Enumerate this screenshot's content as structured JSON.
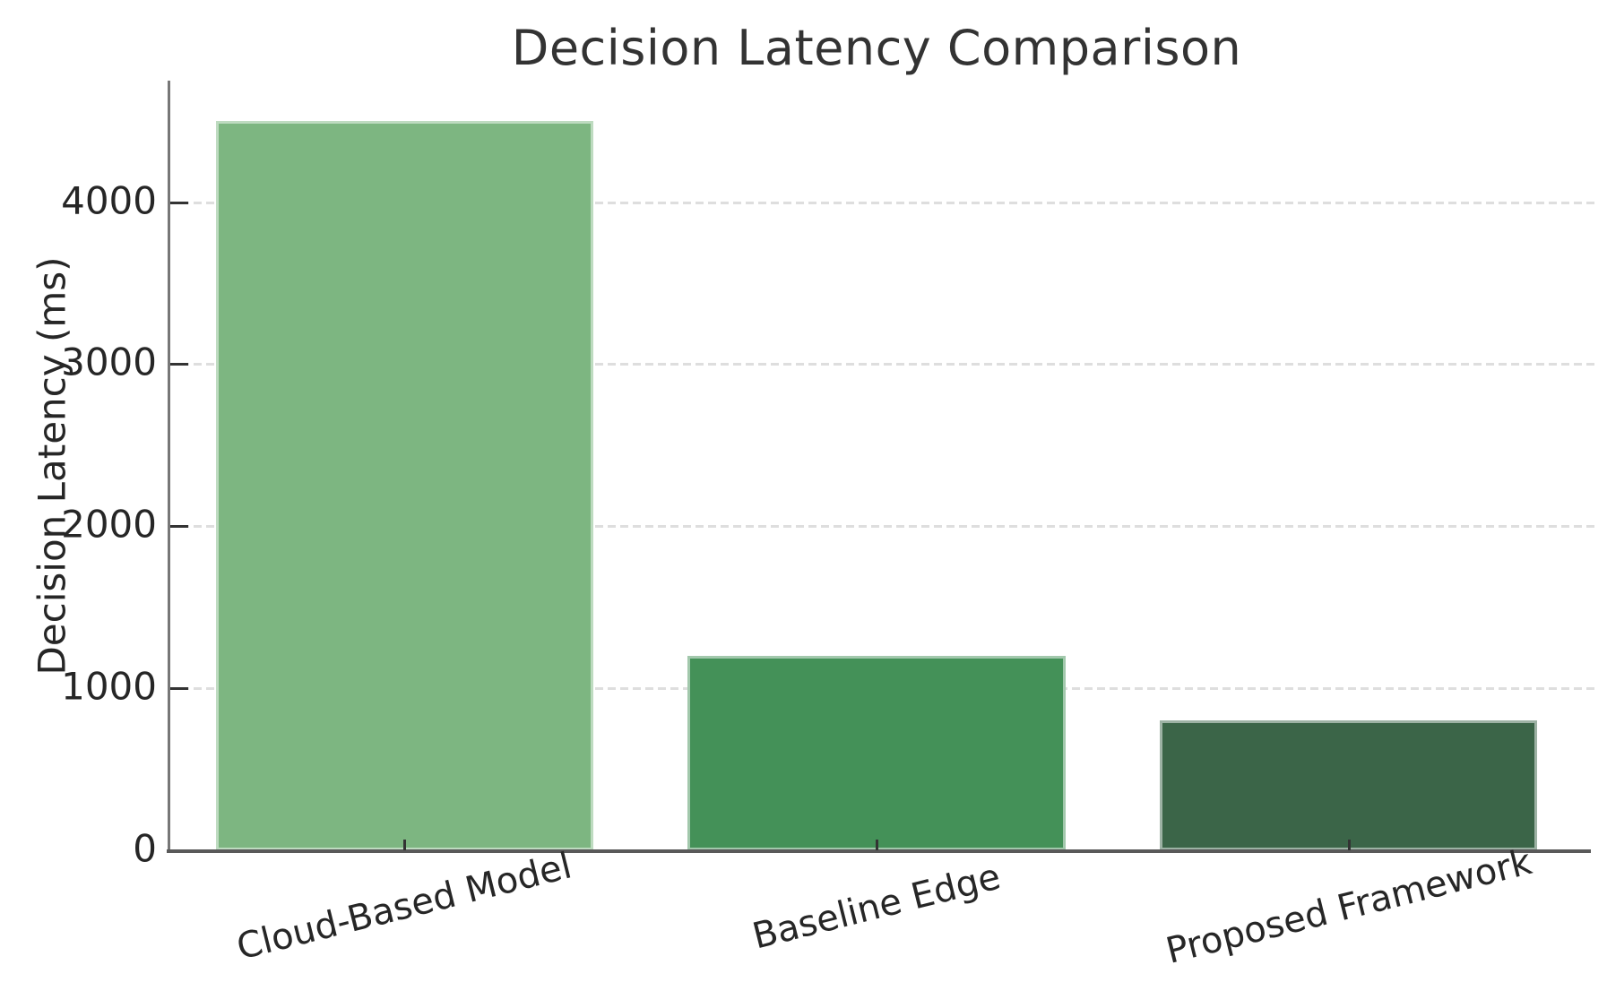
{
  "chart_data": {
    "type": "bar",
    "title": "Decision Latency Comparison",
    "xlabel": "",
    "ylabel": "Decision Latency (ms)",
    "categories": [
      "Cloud-Based Model",
      "Baseline Edge",
      "Proposed Framework"
    ],
    "values": [
      4500,
      1200,
      800
    ],
    "yticks": [
      0,
      1000,
      2000,
      3000,
      4000
    ],
    "ylim": [
      0,
      4750
    ],
    "bar_width_fraction": 0.8,
    "grid": "horizontal-dashed",
    "legend": null,
    "colors": {
      "bars": [
        "#7db681",
        "#449158",
        "#3b6548"
      ],
      "grid": "#dedede",
      "spine_left": "#777777",
      "spine_bottom": "#595959",
      "tick": "#333333",
      "text": "#262626",
      "title": "#333333",
      "background": "#ffffff"
    }
  }
}
